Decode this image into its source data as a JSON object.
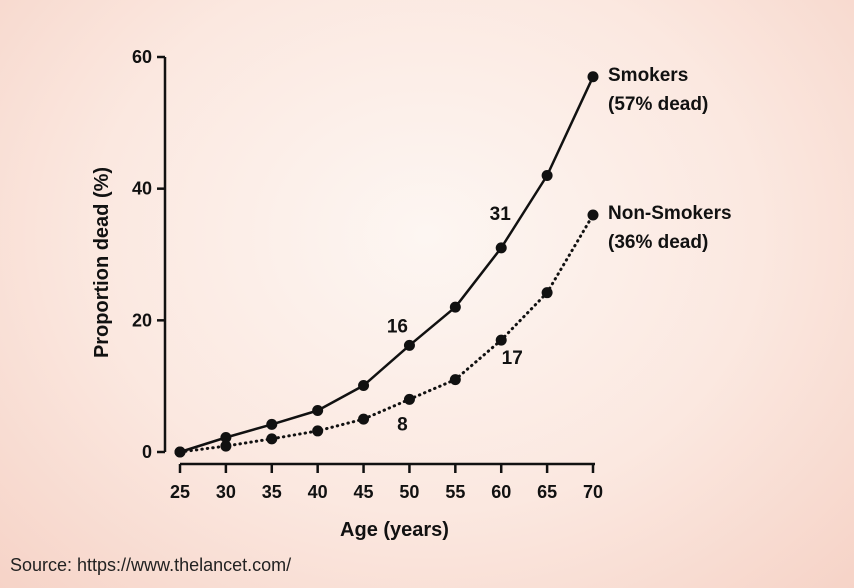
{
  "chart_data": {
    "type": "line",
    "xlabel": "Age (years)",
    "ylabel": "Proportion dead (%)",
    "xlim": [
      25,
      70
    ],
    "ylim": [
      0,
      60
    ],
    "x_ticks": [
      "25",
      "30",
      "35",
      "40",
      "45",
      "50",
      "55",
      "60",
      "65",
      "70"
    ],
    "y_ticks": [
      "0",
      "20",
      "40",
      "60"
    ],
    "grid": false,
    "legend_position": "right, next to line ends",
    "series": [
      {
        "name": "Smokers",
        "note": "(57% dead)",
        "style": "solid",
        "x": [
          25,
          30,
          35,
          40,
          45,
          50,
          55,
          60,
          65,
          70
        ],
        "y": [
          0,
          2.2,
          4.2,
          6.3,
          10.1,
          16.2,
          22,
          31,
          42,
          57
        ]
      },
      {
        "name": "Non-Smokers",
        "note": "(36% dead)",
        "style": "dotted",
        "x": [
          25,
          30,
          35,
          40,
          45,
          50,
          55,
          60,
          65,
          70
        ],
        "y": [
          0,
          0.9,
          2.0,
          3.2,
          5.0,
          8.0,
          11.0,
          17.0,
          24.2,
          36
        ]
      }
    ],
    "annotations": [
      {
        "text": "16",
        "x": 50,
        "y": 16
      },
      {
        "text": "31",
        "x": 60,
        "y": 31
      },
      {
        "text": "8",
        "x": 50,
        "y": 8
      },
      {
        "text": "17",
        "x": 60,
        "y": 17
      }
    ]
  },
  "source": "Source: https://www.thelancet.com/"
}
